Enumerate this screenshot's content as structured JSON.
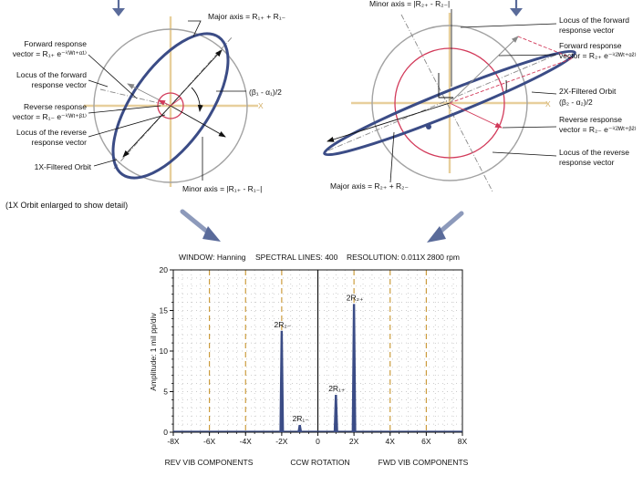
{
  "orbit_1x": {
    "major_axis": "Major axis = R₁₊ + R₁₋",
    "fwd_resp_1": "Forward response",
    "fwd_resp_2": "vector = R₁₊ e⁻ⁱ⁽ᵂᵗ⁺ᵅ¹⁾",
    "locus_fwd_1": "Locus of the forward",
    "locus_fwd_2": "response vector",
    "rev_resp_1": "Reverse response",
    "rev_resp_2": "vector = R₁₋ e⁻ⁱ⁽ᵂᵗ⁺ᵝ¹⁾",
    "locus_rev_1": "Locus of the reverse",
    "locus_rev_2": "response vector",
    "filtered": "1X-Filtered Orbit",
    "angle": "(β₁ - α₁)/2",
    "minor_axis": "Minor axis = |R₁₊ - R₁₋|",
    "x_axis": "X",
    "note": "(1X Orbit enlarged to show detail)"
  },
  "orbit_2x": {
    "major_axis_top": "Minor axis = |R₂₊ - R₂₋|",
    "locus_fwd_1": "Locus of the forward",
    "locus_fwd_2": "response vector",
    "fwd_resp_1": "Forward response",
    "fwd_resp_2": "vector = R₂₊ e⁻ⁱ⁽²ᵂᵗ⁺ᵅ²⁾",
    "angle": "(β₂ - α₂)/2",
    "filtered": "2X-Filtered Orbit",
    "rev_resp_1": "Reverse response",
    "rev_resp_2": "vector = R₂₋ e⁻ⁱ⁽²ᵂᵗ⁺ᵝ²⁾",
    "locus_rev_1": "Locus of the reverse",
    "locus_rev_2": "response vector",
    "major_axis": "Major axis = R₂₊ + R₂₋",
    "x_axis": "X"
  },
  "spectrum": {
    "window": "WINDOW: Hanning",
    "lines": "SPECTRAL LINES: 400",
    "resolution": "RESOLUTION: 0.011X",
    "speed": "2800 rpm",
    "ylabel": "Amplitude: 1 mil pp/div",
    "rev_label": "REV VIB COMPONENTS",
    "ccw_label": "CCW ROTATION",
    "fwd_label": "FWD VIB COMPONENTS"
  },
  "chart_data": {
    "type": "bar",
    "xlim": [
      -8,
      8
    ],
    "ylim": [
      0,
      20
    ],
    "x_ticks": [
      "-8X",
      "-6X",
      "-4X",
      "-2X",
      "0",
      "2X",
      "4X",
      "6X",
      "8X"
    ],
    "y_ticks": [
      "0",
      "5",
      "10",
      "15",
      "20"
    ],
    "peaks": [
      {
        "x": -2,
        "y": 12.5,
        "label": "2R₂₋"
      },
      {
        "x": -1,
        "y": 0.9,
        "label": "2R₁₋"
      },
      {
        "x": 1,
        "y": 4.6,
        "label": "2R₁₊"
      },
      {
        "x": 2,
        "y": 15.8,
        "label": "2R₂₊"
      }
    ],
    "harmonic_marks": [
      -6,
      -4,
      -2,
      2,
      4,
      6
    ],
    "grid": true,
    "colors": {
      "bars": "#3b4c86",
      "harmonics": "#c8952e",
      "orbit": "#3b4c86",
      "locus": "#d23a5a"
    }
  }
}
